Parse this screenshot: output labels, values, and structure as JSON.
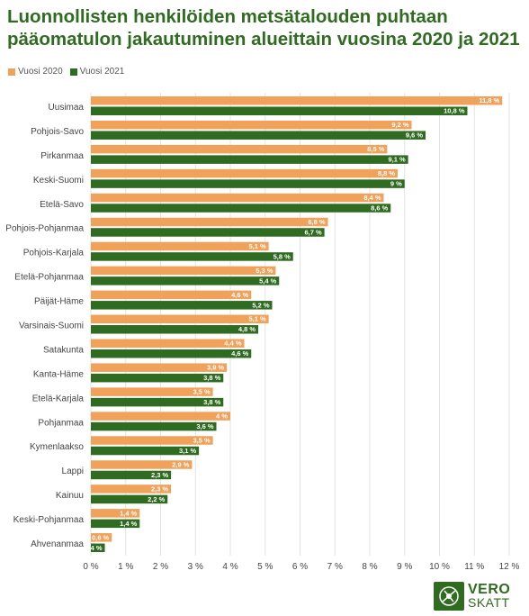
{
  "title": "Luonnollisten henkilöiden metsätalouden puhtaan pääomatulon jakautuminen alueittain vuosina 2020 ja 2021",
  "colors": {
    "title": "#2f6b20",
    "series_2020": "#f0a25a",
    "series_2021": "#2f6b20",
    "grid": "#e3e3e3"
  },
  "logo": {
    "line1": "VERO",
    "line2": "SKATT",
    "icon": "vero-skatt-logo-icon"
  },
  "chart_data": {
    "type": "bar",
    "orientation": "horizontal",
    "title": "Luonnollisten henkilöiden metsätalouden puhtaan pääomatulon jakautuminen alueittain vuosina 2020 ja 2021",
    "xlabel": "",
    "ylabel": "",
    "xlim": [
      0,
      12
    ],
    "x_ticks": [
      "0 %",
      "1 %",
      "2 %",
      "3 %",
      "4 %",
      "5 %",
      "6 %",
      "7 %",
      "8 %",
      "9 %",
      "10 %",
      "11 %",
      "12 %"
    ],
    "grid": "vertical",
    "legend_position": "top-left",
    "categories": [
      "Uusimaa",
      "Pohjois-Savo",
      "Pirkanmaa",
      "Keski-Suomi",
      "Etelä-Savo",
      "Pohjois-Pohjanmaa",
      "Pohjois-Karjala",
      "Etelä-Pohjanmaa",
      "Päijät-Häme",
      "Varsinais-Suomi",
      "Satakunta",
      "Kanta-Häme",
      "Etelä-Karjala",
      "Pohjanmaa",
      "Kymenlaakso",
      "Lappi",
      "Kainuu",
      "Keski-Pohjanmaa",
      "Ahvenanmaa"
    ],
    "series": [
      {
        "name": "Vuosi 2020",
        "values": [
          11.8,
          9.2,
          8.5,
          8.8,
          8.4,
          6.8,
          5.1,
          5.3,
          4.6,
          5.1,
          4.4,
          3.9,
          3.5,
          4,
          3.5,
          2.9,
          2.3,
          1.4,
          0.6
        ],
        "labels": [
          "11,8 %",
          "9,2 %",
          "8,5 %",
          "8,8 %",
          "8,4 %",
          "6,8 %",
          "5,1 %",
          "5,3 %",
          "4,6 %",
          "5,1 %",
          "4,4 %",
          "3,9 %",
          "3,5 %",
          "4 %",
          "3,5 %",
          "2,9 %",
          "2,3 %",
          "1,4 %",
          "0,6 %"
        ]
      },
      {
        "name": "Vuosi 2021",
        "values": [
          10.8,
          9.6,
          9.1,
          9,
          8.6,
          6.7,
          5.8,
          5.4,
          5.2,
          4.8,
          4.6,
          3.8,
          3.8,
          3.6,
          3.1,
          2.3,
          2.2,
          1.4,
          0.4
        ],
        "labels": [
          "10,8 %",
          "9,6 %",
          "9,1 %",
          "9 %",
          "8,6 %",
          "6,7 %",
          "5,8 %",
          "5,4 %",
          "5,2 %",
          "4,8 %",
          "4,6 %",
          "3,8 %",
          "3,8 %",
          "3,6 %",
          "3,1 %",
          "2,3 %",
          "2,2 %",
          "1,4 %",
          "0,4 %"
        ]
      }
    ]
  }
}
